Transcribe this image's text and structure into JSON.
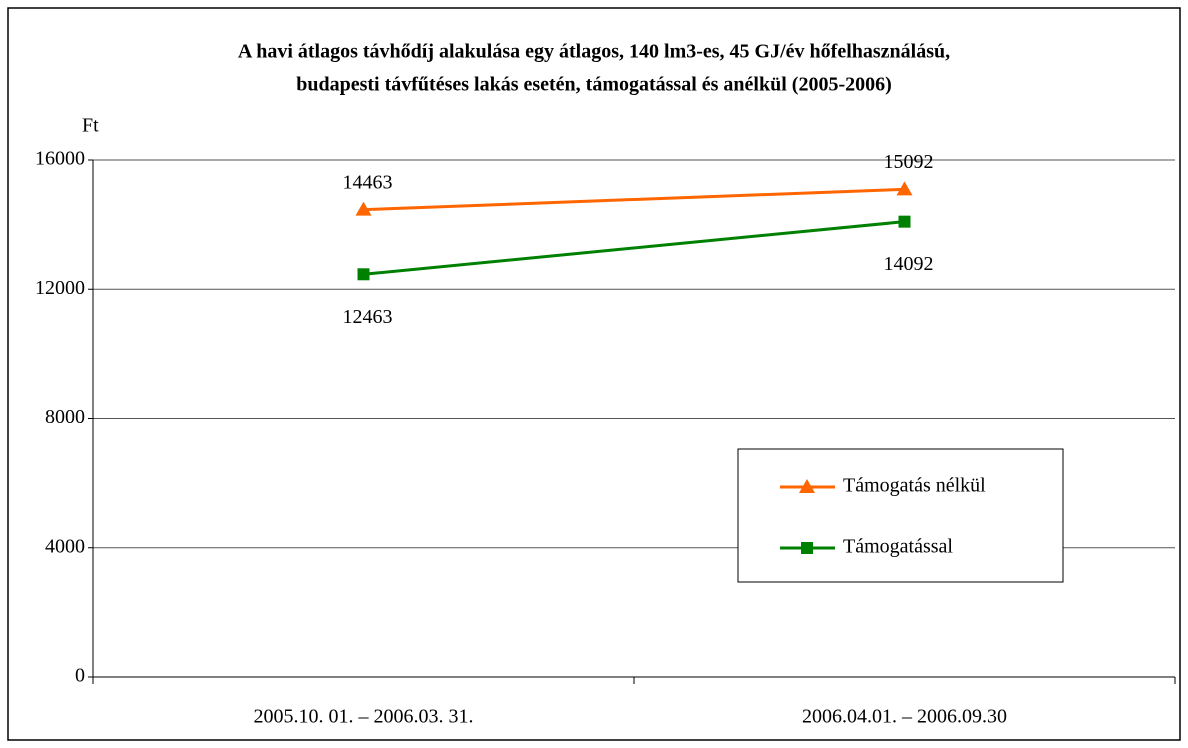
{
  "chart_data": {
    "type": "line",
    "title": [
      "A havi átlagos távhődíj alakulása egy átlagos, 140 lm3-es, 45 GJ/év hőfelhasználású,",
      "budapesti távfűtéses lakás esetén, támogatással és anélkül (2005-2006)"
    ],
    "y_label": "Ft",
    "categories": [
      "2005.10. 01. – 2006.03. 31.",
      "2006.04.01. – 2006.09.30"
    ],
    "series": [
      {
        "name": "Támogatás nélkül",
        "color": "#ff6600",
        "marker": "triangle",
        "values": [
          14463,
          15092
        ]
      },
      {
        "name": "Támogatással",
        "color": "#008000",
        "marker": "square",
        "values": [
          12463,
          14092
        ]
      }
    ],
    "ylim": [
      0,
      16000
    ],
    "yticks": [
      0,
      4000,
      8000,
      12000,
      16000
    ],
    "grid": true
  }
}
